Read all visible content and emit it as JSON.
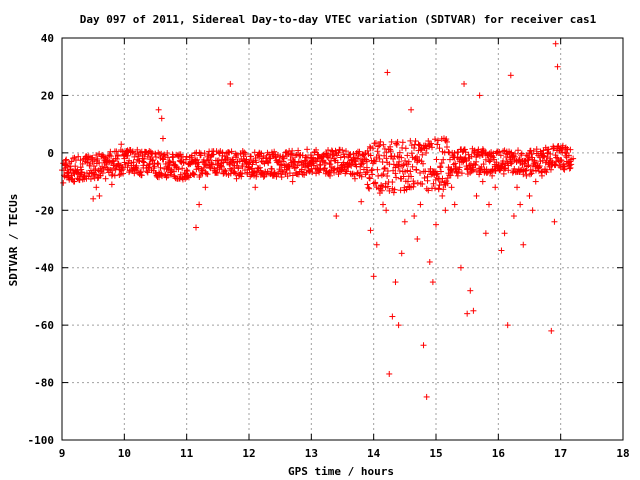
{
  "chart_data": {
    "type": "scatter",
    "title": "Day 097 of 2011, Sidereal Day-to-day VTEC variation (SDTVAR) for receiver cas1",
    "xlabel": "GPS time / hours",
    "ylabel": "SDTVAR / TECUs",
    "xlim": [
      9,
      18
    ],
    "ylim": [
      -100,
      40
    ],
    "x_ticks": [
      "9",
      "10",
      "11",
      "12",
      "13",
      "14",
      "15",
      "16",
      "17",
      "18"
    ],
    "y_ticks": [
      "-100",
      "-80",
      "-60",
      "-40",
      "-20",
      "0",
      "20",
      "40"
    ],
    "grid": true,
    "marker": "+",
    "color": "#ff0000",
    "series": [
      {
        "x": [
          9.0,
          9.05,
          9.1,
          9.15,
          9.2,
          9.3,
          9.4,
          9.5,
          9.55,
          9.6,
          9.7,
          9.75,
          9.8,
          9.9,
          9.95,
          10.0,
          10.05,
          10.1,
          10.2,
          10.3,
          10.4,
          10.5,
          10.55,
          10.6,
          10.62,
          10.7,
          10.8,
          10.9,
          11.0,
          11.1,
          11.15,
          11.2,
          11.3,
          11.4,
          11.5,
          11.6,
          11.7,
          11.8,
          11.9,
          12.0,
          12.1,
          12.2,
          12.3,
          12.4,
          12.5,
          12.6,
          12.7,
          12.8,
          12.9,
          13.0,
          13.1,
          13.2,
          13.3,
          13.4,
          13.5,
          13.6,
          13.7,
          13.8,
          13.9,
          13.95,
          14.0,
          14.05,
          14.1,
          14.15,
          14.2,
          14.22,
          14.25,
          14.3,
          14.35,
          14.4,
          14.45,
          14.5,
          14.55,
          14.6,
          14.65,
          14.7,
          14.75,
          14.8,
          14.85,
          14.9,
          14.95,
          15.0,
          15.05,
          15.1,
          15.15,
          15.2,
          15.25,
          15.3,
          15.35,
          15.4,
          15.45,
          15.5,
          15.55,
          15.6,
          15.65,
          15.7,
          15.75,
          15.8,
          15.85,
          15.9,
          15.95,
          16.0,
          16.05,
          16.1,
          16.15,
          16.2,
          16.25,
          16.3,
          16.35,
          16.4,
          16.45,
          16.5,
          16.55,
          16.6,
          16.65,
          16.7,
          16.75,
          16.8,
          16.85,
          16.9,
          16.92,
          16.95,
          17.0,
          17.05,
          17.1,
          17.15,
          17.2
        ],
        "y": [
          -6,
          -4,
          -8,
          -3,
          -10,
          -5,
          -7,
          -16,
          -12,
          -15,
          -9,
          -6,
          -11,
          -4,
          3,
          -2,
          -5,
          1,
          -6,
          -3,
          -4,
          -7,
          15,
          12,
          5,
          -5,
          -8,
          -3,
          -6,
          -7,
          -26,
          -18,
          -12,
          -4,
          -7,
          -6,
          24,
          -9,
          -3,
          -5,
          -12,
          -7,
          -3,
          -8,
          -4,
          -6,
          -10,
          -3,
          -5,
          -4,
          -2,
          -6,
          -8,
          -22,
          -5,
          -4,
          -9,
          -17,
          -11,
          -27,
          -43,
          -32,
          -14,
          -18,
          -20,
          28,
          -77,
          -57,
          -45,
          -60,
          -35,
          -24,
          -10,
          15,
          -22,
          -30,
          -18,
          -67,
          -85,
          -38,
          -45,
          -25,
          -9,
          -15,
          -20,
          -5,
          -12,
          -18,
          -8,
          -40,
          24,
          -56,
          -48,
          -55,
          -15,
          20,
          -10,
          -28,
          -18,
          -8,
          -12,
          -5,
          -34,
          -28,
          -60,
          27,
          -22,
          -12,
          -18,
          -32,
          -8,
          -15,
          -20,
          -10,
          -5,
          -8,
          -6,
          -4,
          -62,
          -24,
          38,
          30,
          -5,
          -4,
          -3,
          -3,
          -2
        ],
        "band_center": [
          [
            9.0,
            -6
          ],
          [
            9.5,
            -5
          ],
          [
            10.0,
            -3
          ],
          [
            10.5,
            -4
          ],
          [
            11.0,
            -5
          ],
          [
            11.5,
            -3
          ],
          [
            12.0,
            -4
          ],
          [
            12.5,
            -4
          ],
          [
            13.0,
            -3
          ],
          [
            13.5,
            -3
          ],
          [
            14.0,
            -5
          ],
          [
            14.5,
            -5
          ],
          [
            15.0,
            -4
          ],
          [
            15.5,
            -3
          ],
          [
            16.0,
            -3
          ],
          [
            16.5,
            -3
          ],
          [
            17.0,
            -2
          ],
          [
            17.2,
            -2
          ]
        ]
      }
    ]
  }
}
